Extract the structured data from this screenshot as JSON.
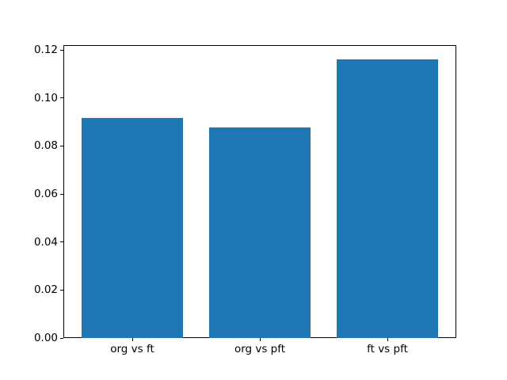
{
  "chart_data": {
    "type": "bar",
    "title": "",
    "xlabel": "",
    "ylabel": "",
    "categories": [
      "org vs ft",
      "org vs pft",
      "ft vs pft"
    ],
    "values": [
      0.0917,
      0.0877,
      0.116
    ],
    "bar_color": "#1f77b4",
    "bar_width_fraction": 0.8,
    "xlim": [
      -0.54,
      2.54
    ],
    "ylim": [
      0,
      0.1218
    ],
    "yticks": [
      0.0,
      0.02,
      0.04,
      0.06,
      0.08,
      0.1,
      0.12
    ],
    "ytick_labels": [
      "0.00",
      "0.02",
      "0.04",
      "0.06",
      "0.08",
      "0.10",
      "0.12"
    ],
    "grid": false,
    "legend": null,
    "background_color": "#ffffff",
    "axis_color": "#000000"
  }
}
